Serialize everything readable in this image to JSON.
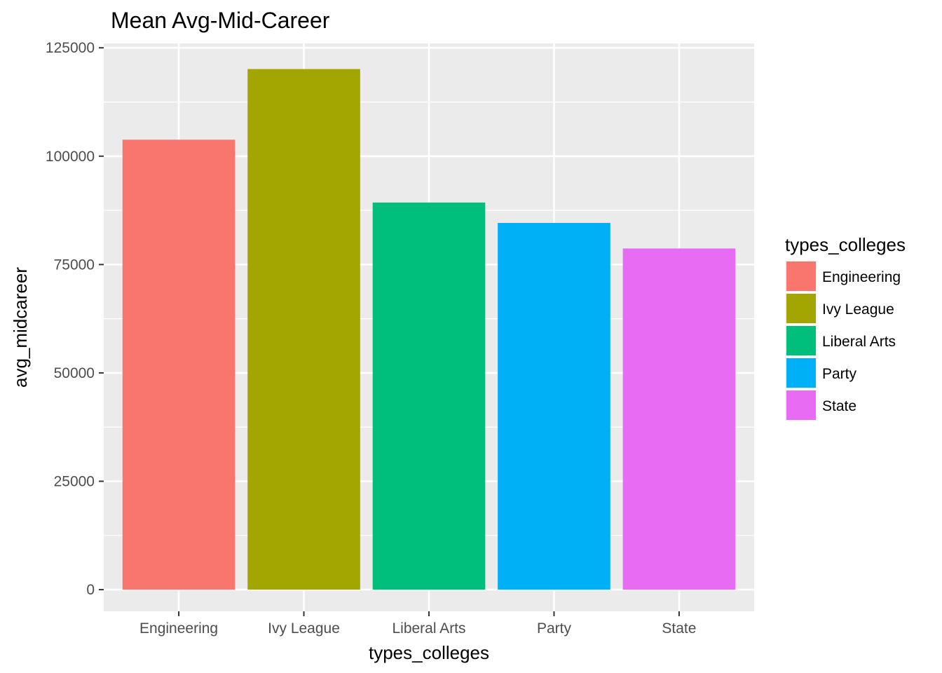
{
  "chart_data": {
    "type": "bar",
    "title": "Mean Avg-Mid-Career",
    "xlabel": "types_colleges",
    "ylabel": "avg_midcareer",
    "categories": [
      "Engineering",
      "Ivy League",
      "Liberal Arts",
      "Party",
      "State"
    ],
    "values": [
      103800,
      120100,
      89300,
      84600,
      78700
    ],
    "colors": [
      "#F8766D",
      "#A3A500",
      "#00BF7D",
      "#00B0F6",
      "#E76BF3"
    ],
    "ylim": [
      -5000,
      126000
    ],
    "yticks": [
      0,
      25000,
      50000,
      75000,
      100000,
      125000
    ],
    "ytick_labels": [
      "0",
      "25000",
      "50000",
      "75000",
      "100000",
      "125000"
    ],
    "grid": true,
    "panel_background": "#EBEBEB",
    "legend": {
      "title": "types_colleges",
      "placement": "right",
      "entries": [
        "Engineering",
        "Ivy League",
        "Liberal Arts",
        "Party",
        "State"
      ]
    }
  }
}
